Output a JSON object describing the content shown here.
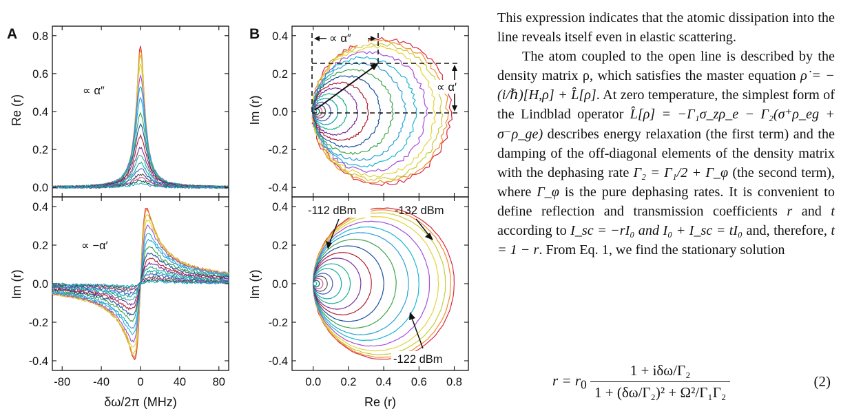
{
  "figure": {
    "panel_a_label": "A",
    "panel_b_label": "B",
    "colors": [
      "#d7263d",
      "#f28c28",
      "#c9c93a",
      "#e5d13b",
      "#a14fd8",
      "#19b5d1",
      "#2a9fd6",
      "#3ca34a",
      "#1a4fa0",
      "#b01e2e",
      "#7a2fa0",
      "#20b090",
      "#18a8a8",
      "#4058c8",
      "#555555",
      "#d050a0",
      "#0a6a3a",
      "#26a7d8"
    ],
    "annotations": {
      "a_top": "∝ α″",
      "a_bottom": "∝ −α′",
      "b_top_horizontal": "∝ α″",
      "b_top_vertical": "∝ α′",
      "b_bottom_112": "-112 dBm",
      "b_bottom_132": "-132 dBm",
      "b_bottom_122": "-122 dBm"
    }
  },
  "chart_data": [
    {
      "type": "line",
      "panel": "A top",
      "xlabel": "",
      "ylabel": "Re (r)",
      "xlim": [
        -90,
        90
      ],
      "ylim": [
        -0.05,
        0.85
      ],
      "xticks": [
        -80,
        -40,
        0,
        40,
        80
      ],
      "yticks": [
        "0.0",
        "0.2",
        "0.4",
        "0.6",
        "0.8"
      ],
      "description_note": "Lorentzian peaks centered at 0 MHz",
      "series_peaks": [
        0.75,
        0.73,
        0.7,
        0.65,
        0.59,
        0.53,
        0.47,
        0.39,
        0.33,
        0.27,
        0.21,
        0.17,
        0.13,
        0.1,
        0.07,
        0.05,
        0.035,
        0.02
      ]
    },
    {
      "type": "line",
      "panel": "A bottom",
      "xlabel": "δω/2π (MHz)",
      "ylabel": "Im (r)",
      "xlim": [
        -90,
        90
      ],
      "ylim": [
        -0.45,
        0.45
      ],
      "xticks": [
        "-80",
        "-40",
        "0",
        "40",
        "80"
      ],
      "yticks": [
        "-0.4",
        "-0.2",
        "0.0",
        "0.2",
        "0.4"
      ],
      "series_extrema": [
        0.39,
        0.38,
        0.36,
        0.33,
        0.3,
        0.26,
        0.23,
        0.19,
        0.16,
        0.13,
        0.105,
        0.085,
        0.065,
        0.05,
        0.035,
        0.025,
        0.018,
        0.012
      ]
    },
    {
      "type": "line",
      "panel": "B top",
      "xlabel": "",
      "ylabel": "Im (r)",
      "xlim": [
        -0.12,
        0.88
      ],
      "ylim": [
        -0.45,
        0.45
      ],
      "yticks": [
        "-0.4",
        "-0.2",
        "0.0",
        "0.2",
        "0.4"
      ],
      "circle_diameters": [
        0.78,
        0.76,
        0.73,
        0.69,
        0.64,
        0.58,
        0.52,
        0.45,
        0.38,
        0.31,
        0.25,
        0.19,
        0.14,
        0.1,
        0.07,
        0.05,
        0.035,
        0.02
      ]
    },
    {
      "type": "line",
      "panel": "B bottom",
      "xlabel": "Re (r)",
      "ylabel": "Im (r)",
      "xlim": [
        -0.12,
        0.88
      ],
      "ylim": [
        -0.45,
        0.45
      ],
      "xticks": [
        "0.0",
        "0.2",
        "0.4",
        "0.6",
        "0.8"
      ],
      "yticks": [
        "-0.4",
        "-0.2",
        "0.0",
        "0.2",
        "0.4"
      ],
      "circle_diameters": [
        0.8,
        0.78,
        0.75,
        0.71,
        0.66,
        0.6,
        0.54,
        0.47,
        0.4,
        0.33,
        0.27,
        0.21,
        0.16,
        0.11,
        0.08,
        0.055,
        0.035,
        0.02
      ]
    }
  ],
  "text": {
    "p1": "This expression indicates that the atomic dissipation into the line reveals itself even in elastic scattering.",
    "p2_a": "The atom coupled to the open line is described by the density matrix ρ, which satisfies the master equation ",
    "p2_eq1": "ρ̇ = −(i/ℏ)[H,ρ] + L̂[ρ]",
    "p2_b": ". At zero temperature, the simplest form of the Lindblad operator ",
    "p2_eq2": "L̂[ρ] = −Γ₁σ_zρ_e − Γ₂(σ⁺ρ_eg + σ⁻ρ_ge)",
    "p2_c": " describes energy relaxation (the first term) and the damping of the off-diagonal elements of the density matrix with the dephasing rate ",
    "p2_eq3": "Γ₂ = Γ₁/2 + Γ_φ",
    "p2_d": " (the second term), where ",
    "p2_eq4": "Γ_φ",
    "p2_e": " is the pure dephasing rates. It is convenient to define reflection and transmission coefficients ",
    "p2_r": "r",
    "p2_f": " and ",
    "p2_t": "t",
    "p2_g": " according to ",
    "p2_eq5": "I_sc = −rI₀ and I₀ + I_sc = tI₀",
    "p2_h": " and, therefore, ",
    "p2_eq6": "t = 1 − r",
    "p2_i": ". From Eq. 1, we find the stationary solution",
    "eq_lhs": "r = r",
    "eq_lhs_sub": "0",
    "eq_num": "1 + iδω/Γ₂",
    "eq_den": "1 + (δω/Γ₂)² + Ω²/Γ₁Γ₂",
    "eq_number": "(2)"
  }
}
